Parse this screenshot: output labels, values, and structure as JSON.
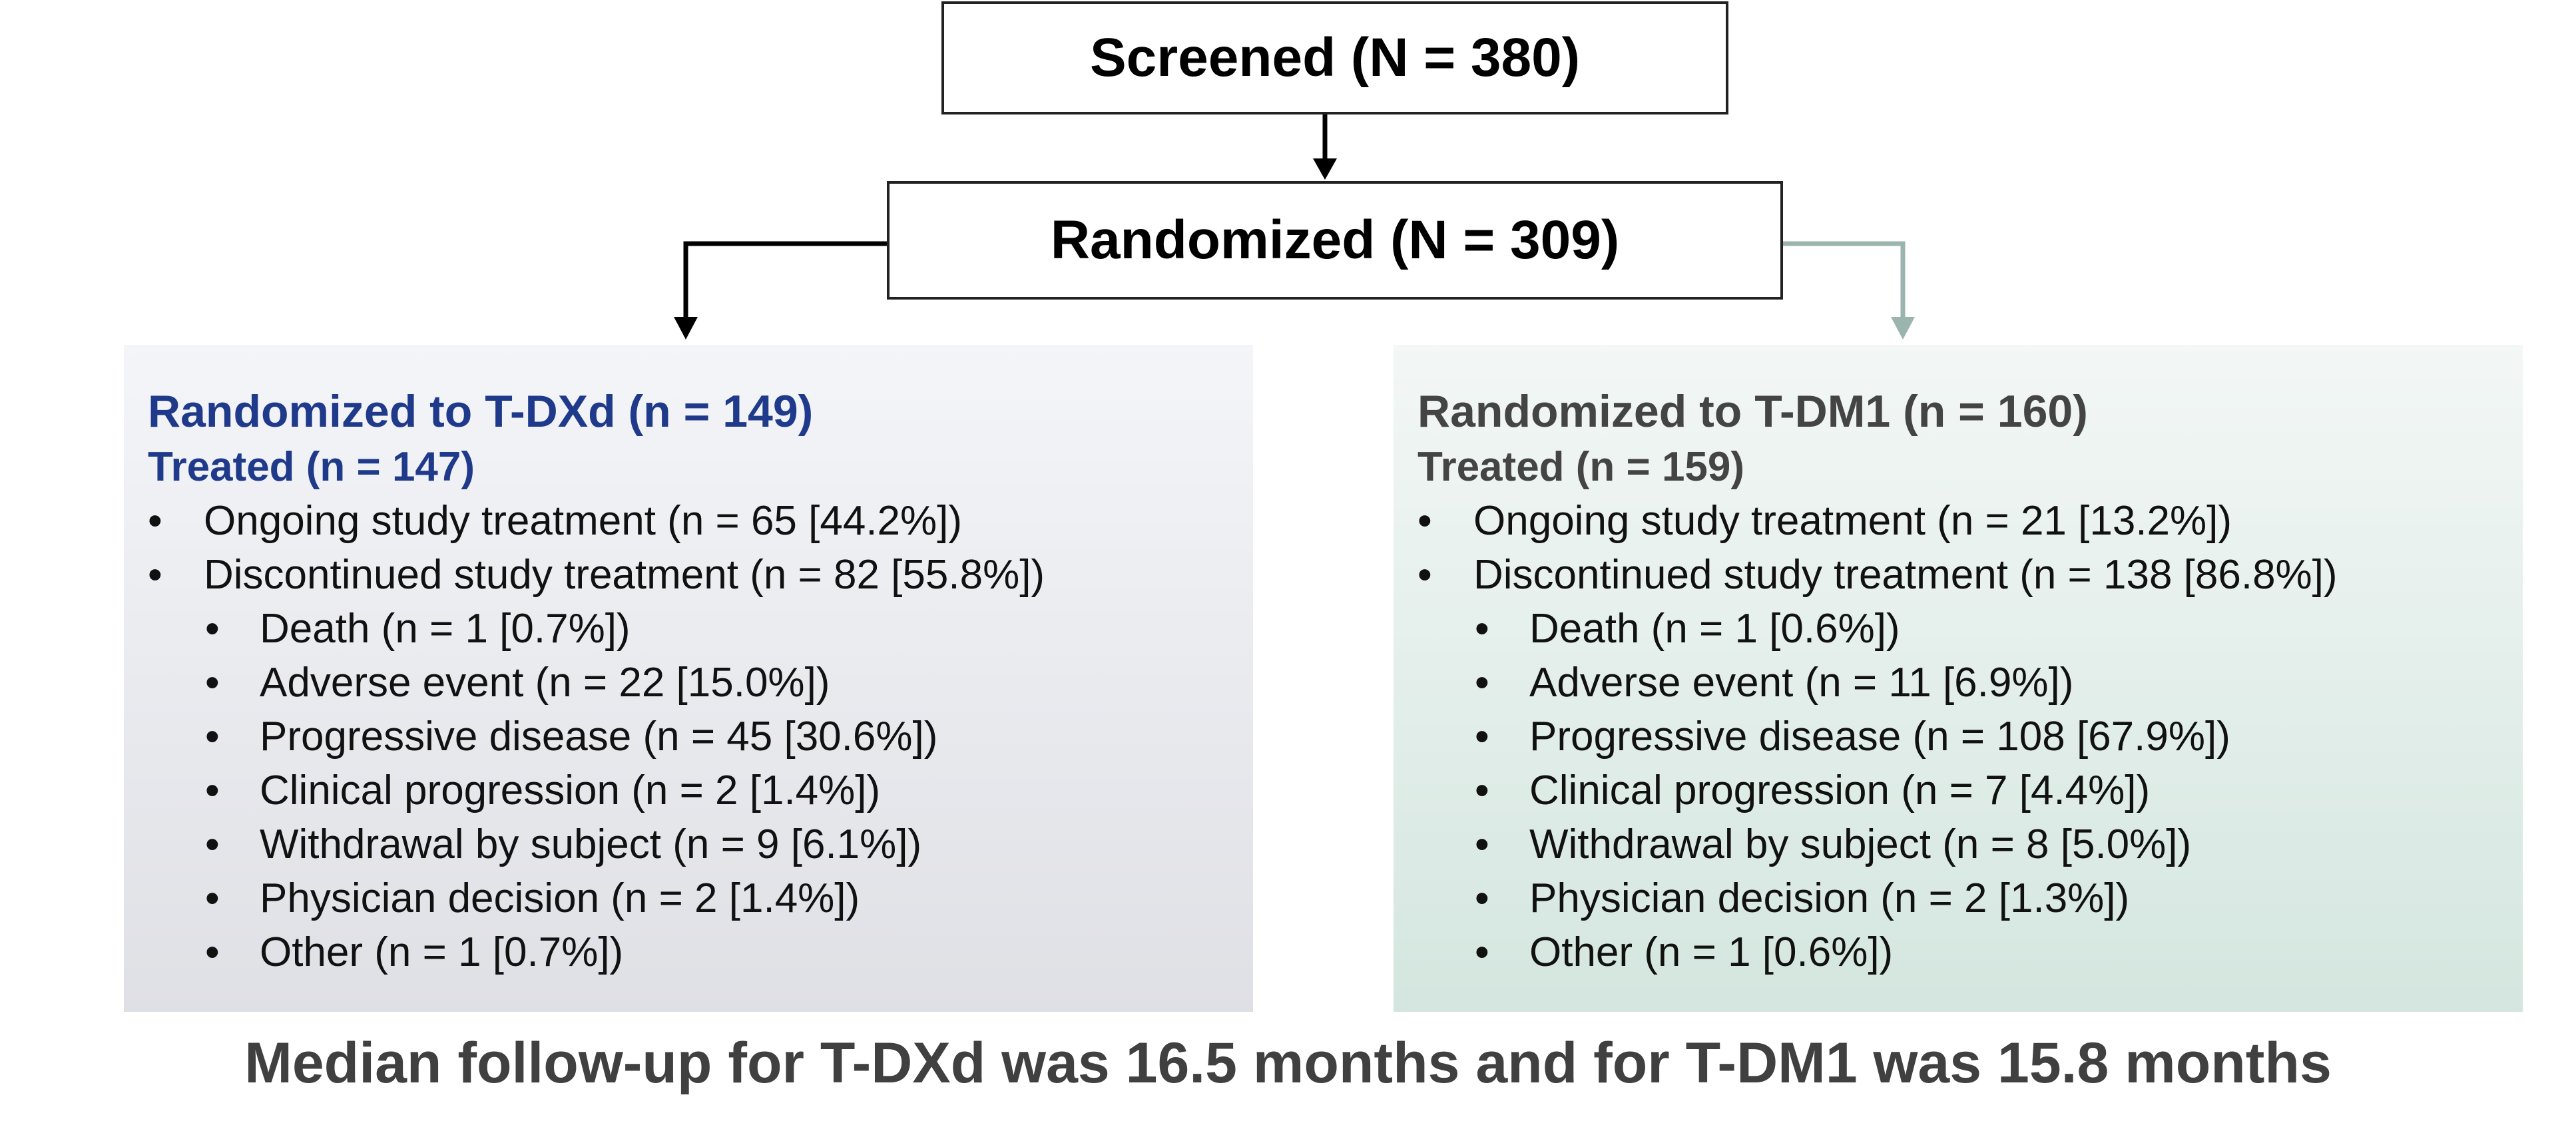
{
  "nodes": {
    "screened": "Screened (N = 380)",
    "randomized": "Randomized (N = 309)"
  },
  "arms": [
    {
      "title": "Randomized to T-DXd (n = 149)",
      "treated": "Treated (n = 147)",
      "color": "#1f3a8a",
      "items": [
        {
          "level": 1,
          "text": "Ongoing study treatment (n = 65 [44.2%])"
        },
        {
          "level": 1,
          "text": "Discontinued study treatment (n = 82 [55.8%])"
        },
        {
          "level": 2,
          "text": "Death (n = 1 [0.7%])"
        },
        {
          "level": 2,
          "text": "Adverse event (n = 22 [15.0%])"
        },
        {
          "level": 2,
          "text": "Progressive disease (n = 45 [30.6%])"
        },
        {
          "level": 2,
          "text": "Clinical progression (n = 2 [1.4%])"
        },
        {
          "level": 2,
          "text": "Withdrawal by subject (n = 9 [6.1%])"
        },
        {
          "level": 2,
          "text": "Physician decision (n = 2 [1.4%])"
        },
        {
          "level": 2,
          "text": "Other (n = 1 [0.7%])"
        }
      ]
    },
    {
      "title": "Randomized to T-DM1 (n = 160)",
      "treated": "Treated (n = 159)",
      "color": "#444444",
      "items": [
        {
          "level": 1,
          "text": "Ongoing study treatment (n = 21 [13.2%])"
        },
        {
          "level": 1,
          "text": "Discontinued study treatment (n = 138 [86.8%])"
        },
        {
          "level": 2,
          "text": "Death (n = 1 [0.6%])"
        },
        {
          "level": 2,
          "text": "Adverse event (n = 11 [6.9%])"
        },
        {
          "level": 2,
          "text": "Progressive disease (n = 108 [67.9%])"
        },
        {
          "level": 2,
          "text": "Clinical progression (n = 7 [4.4%])"
        },
        {
          "level": 2,
          "text": "Withdrawal by subject (n = 8 [5.0%])"
        },
        {
          "level": 2,
          "text": "Physician decision (n = 2 [1.3%])"
        },
        {
          "level": 2,
          "text": "Other (n = 1 [0.6%])"
        }
      ]
    }
  ],
  "footer": "Median follow-up for T-DXd was 16.5 months and for T-DM1 was 15.8 months",
  "colors": {
    "connector_left": "#000000",
    "connector_right": "#9bb5ae"
  }
}
